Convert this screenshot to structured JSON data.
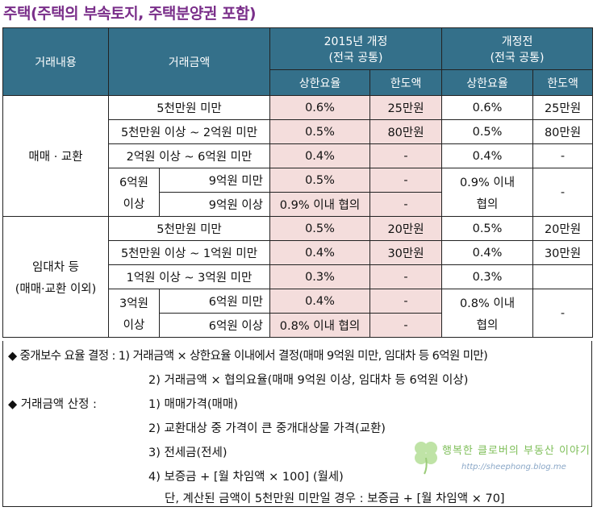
{
  "title": "주택(주택의 부속토지, 주택분양권 포함)",
  "header": {
    "col_type": "거래내용",
    "col_amount": "거래금액",
    "group_2015_line1": "2015년 개정",
    "group_2015_line2": "(전국 공통)",
    "group_before_line1": "개정전",
    "group_before_line2": "(전국 공통)",
    "rate": "상한요율",
    "limit": "한도액"
  },
  "sale": {
    "label": "매매 · 교환",
    "r1": {
      "amount": "5천만원 미만",
      "rate_new": "0.6%",
      "limit_new": "25만원",
      "rate_old": "0.6%",
      "limit_old": "25만원"
    },
    "r2": {
      "amount": "5천만원 이상 ~ 2억원 미만",
      "rate_new": "0.5%",
      "limit_new": "80만원",
      "rate_old": "0.5%",
      "limit_old": "80만원"
    },
    "r3": {
      "amount": "2억원 이상 ~ 6억원 미만",
      "rate_new": "0.4%",
      "limit_new": "-",
      "rate_old": "0.4%",
      "limit_old": "-"
    },
    "over_label_1": "6억원",
    "over_label_2": "이상",
    "r4": {
      "amount": "9억원 미만",
      "rate_new": "0.5%",
      "limit_new": "-"
    },
    "r5": {
      "amount": "9억원 이상",
      "rate_new": "0.9% 이내 협의",
      "limit_new": "-"
    },
    "old_over_1": "0.9% 이내",
    "old_over_2": "협의",
    "old_over_limit": "-"
  },
  "lease": {
    "label_1": "임대차 등",
    "label_2": "(매매·교환 이외)",
    "r1": {
      "amount": "5천만원 미만",
      "rate_new": "0.5%",
      "limit_new": "20만원",
      "rate_old": "0.5%",
      "limit_old": "20만원"
    },
    "r2": {
      "amount": "5천만원 이상 ~ 1억원 미만",
      "rate_new": "0.4%",
      "limit_new": "30만원",
      "rate_old": "0.4%",
      "limit_old": "30만원"
    },
    "r3": {
      "amount": "1억원 이상 ~ 3억원 미만",
      "rate_new": "0.3%",
      "limit_new": "-",
      "rate_old": "0.3%",
      "limit_old": ""
    },
    "over_label_1": "3억원",
    "over_label_2": "이상",
    "r4": {
      "amount": "6억원 미만",
      "rate_new": "0.4%",
      "limit_new": "-"
    },
    "r5": {
      "amount": "6억원 이상",
      "rate_new": "0.8% 이내 협의",
      "limit_new": "-"
    },
    "old_over_1": "0.8% 이내",
    "old_over_2": "협의",
    "old_over_limit": "-"
  },
  "notes": {
    "l1": "◆ 중개보수 요율 결정 : 1) 거래금액 × 상한요율 이내에서 결정(매매 9억원 미만, 임대차 등 6억원 미만)",
    "l2": "2) 거래금액 × 협의요율(매매 9억원 이상, 임대차 등 6억원 이상)",
    "l3a": "◆ 거래금액 산정 :",
    "l3b": "1) 매매가격(매매)",
    "l4": "2) 교환대상 중 가격이 큰 중개대상물 가격(교환)",
    "l5": "3) 전세금(전세)",
    "l6": "4) 보증금 + [월 차임액 × 100] (월세)",
    "l7": "단, 계산된 금액이 5천만원 미만일 경우 : 보증금 + [월 차임액 × 70]"
  },
  "watermark": {
    "text": "행복한 클로버의 부동산 이야기",
    "url": "http://sheephong.blog.me"
  },
  "colors": {
    "header_bg": "#34708a",
    "highlight_bg": "#f4dddc",
    "title_color": "#7a2f8a"
  }
}
